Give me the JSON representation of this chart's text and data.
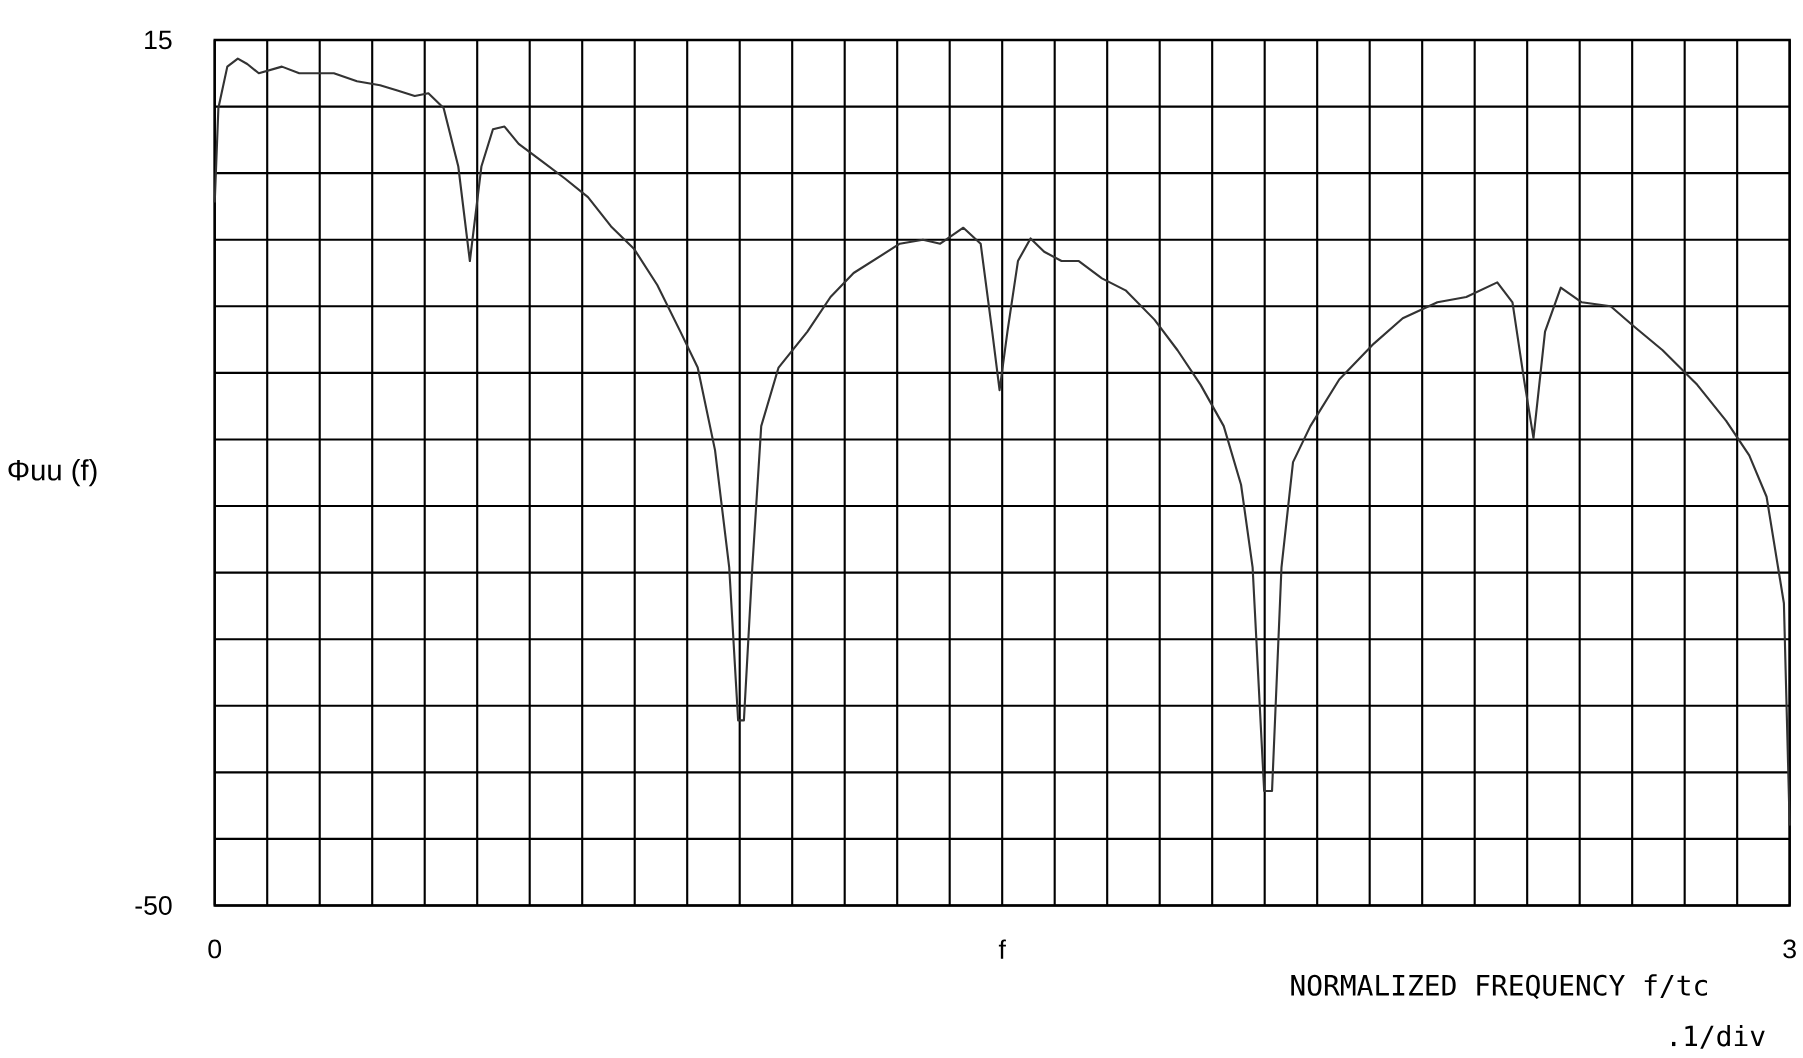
{
  "chart_data": {
    "type": "line",
    "xlabel": "NORMALIZED FREQUENCY f/tc",
    "ylabel": "Φuu (f)",
    "annotations": [
      ".1/div"
    ],
    "color": "#333333",
    "grid": true,
    "xlim": [
      0,
      3
    ],
    "ylim": [
      -50,
      15
    ],
    "xticks": [
      {
        "value": 0,
        "label": "0"
      },
      {
        "value": 0.1,
        "label": null
      },
      {
        "value": 0.2,
        "label": null
      },
      {
        "value": 0.3,
        "label": null
      },
      {
        "value": 0.4,
        "label": null
      },
      {
        "value": 0.5,
        "label": null
      },
      {
        "value": 0.6,
        "label": null
      },
      {
        "value": 0.7,
        "label": null
      },
      {
        "value": 0.8,
        "label": null
      },
      {
        "value": 0.9,
        "label": null
      },
      {
        "value": 1.0,
        "label": null
      },
      {
        "value": 1.1,
        "label": null
      },
      {
        "value": 1.2,
        "label": null
      },
      {
        "value": 1.3,
        "label": null
      },
      {
        "value": 1.4,
        "label": null
      },
      {
        "value": 1.5,
        "label": "f"
      },
      {
        "value": 1.6,
        "label": null
      },
      {
        "value": 1.7,
        "label": null
      },
      {
        "value": 1.8,
        "label": null
      },
      {
        "value": 1.9,
        "label": null
      },
      {
        "value": 2.0,
        "label": null
      },
      {
        "value": 2.1,
        "label": null
      },
      {
        "value": 2.2,
        "label": null
      },
      {
        "value": 2.3,
        "label": null
      },
      {
        "value": 2.4,
        "label": null
      },
      {
        "value": 2.5,
        "label": null
      },
      {
        "value": 2.6,
        "label": null
      },
      {
        "value": 2.7,
        "label": null
      },
      {
        "value": 2.8,
        "label": null
      },
      {
        "value": 2.9,
        "label": null
      },
      {
        "value": 3,
        "label": "3"
      }
    ],
    "yticks": [
      {
        "value": -50,
        "label": "-50"
      },
      {
        "value": -45,
        "label": null
      },
      {
        "value": -40,
        "label": null
      },
      {
        "value": -35,
        "label": null
      },
      {
        "value": -30,
        "label": null
      },
      {
        "value": -25,
        "label": null
      },
      {
        "value": -20,
        "label": null
      },
      {
        "value": -15,
        "label": null
      },
      {
        "value": -10,
        "label": null
      },
      {
        "value": -5,
        "label": null
      },
      {
        "value": 0,
        "label": null
      },
      {
        "value": 5,
        "label": null
      },
      {
        "value": 10,
        "label": null
      },
      {
        "value": 15,
        "label": "15"
      }
    ],
    "x": [
      0,
      0.007,
      0.024,
      0.044,
      0.062,
      0.084,
      0.128,
      0.161,
      0.227,
      0.271,
      0.315,
      0.348,
      0.381,
      0.407,
      0.436,
      0.464,
      0.486,
      0.508,
      0.53,
      0.552,
      0.579,
      0.623,
      0.667,
      0.711,
      0.755,
      0.799,
      0.843,
      0.887,
      0.92,
      0.953,
      0.98,
      0.997,
      1.008,
      1.024,
      1.041,
      1.074,
      1.129,
      1.173,
      1.217,
      1.261,
      1.305,
      1.349,
      1.382,
      1.426,
      1.459,
      1.481,
      1.495,
      1.51,
      1.53,
      1.554,
      1.58,
      1.613,
      1.646,
      1.69,
      1.735,
      1.79,
      1.834,
      1.878,
      1.922,
      1.955,
      1.977,
      1.999,
      2.014,
      2.032,
      2.054,
      2.087,
      2.142,
      2.208,
      2.263,
      2.329,
      2.384,
      2.443,
      2.472,
      2.494,
      2.512,
      2.534,
      2.564,
      2.604,
      2.659,
      2.703,
      2.758,
      2.824,
      2.879,
      2.923,
      2.956,
      2.989,
      3.0
    ],
    "values": [
      2.8,
      9.9,
      13.0,
      13.6,
      13.2,
      12.5,
      13.0,
      12.5,
      12.5,
      11.9,
      11.6,
      11.2,
      10.8,
      11.0,
      9.9,
      5.5,
      -1.6,
      5.5,
      8.3,
      8.5,
      7.2,
      5.9,
      4.6,
      3.2,
      1.0,
      -0.7,
      -3.4,
      -6.9,
      -9.6,
      -15.8,
      -24.6,
      -36.1,
      -36.1,
      -24.6,
      -14.0,
      -9.6,
      -6.9,
      -4.3,
      -2.5,
      -1.4,
      -0.3,
      0.0,
      -0.3,
      0.9,
      -0.3,
      -6.9,
      -11.3,
      -6.9,
      -1.6,
      0.1,
      -0.9,
      -1.6,
      -1.6,
      -2.9,
      -3.8,
      -6.0,
      -8.3,
      -10.9,
      -14.0,
      -18.4,
      -24.6,
      -41.4,
      -41.4,
      -24.6,
      -16.7,
      -14.0,
      -10.5,
      -7.8,
      -5.9,
      -4.7,
      -4.3,
      -3.2,
      -4.7,
      -10.5,
      -14.9,
      -6.9,
      -3.6,
      -4.7,
      -5.0,
      -6.5,
      -8.3,
      -10.9,
      -13.6,
      -16.2,
      -19.3,
      -27.3,
      -44.0
    ]
  }
}
